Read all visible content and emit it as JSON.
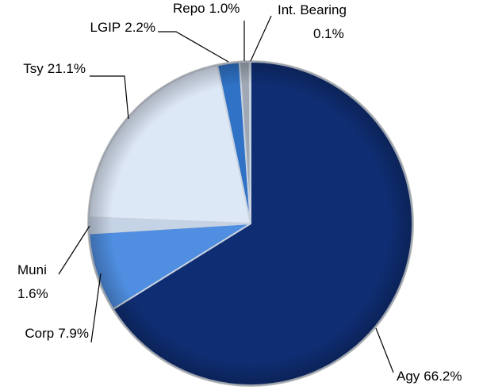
{
  "chart_data": {
    "type": "pie",
    "categories": [
      "Agy",
      "Corp",
      "Muni",
      "Tsy",
      "LGIP",
      "Repo",
      "Int. Bearing"
    ],
    "values": [
      66.2,
      7.9,
      1.6,
      21.1,
      2.2,
      1.0,
      0.1
    ],
    "value_labels": [
      "66.2%",
      "7.9%",
      "1.6%",
      "21.1%",
      "2.2%",
      "1.0%",
      "0.1%"
    ],
    "colors": [
      "#0f2d72",
      "#4f8ee0",
      "#c5d3e6",
      "#dde8f7",
      "#2f72c6",
      "#9fa8b4",
      "#d9dde3"
    ]
  }
}
